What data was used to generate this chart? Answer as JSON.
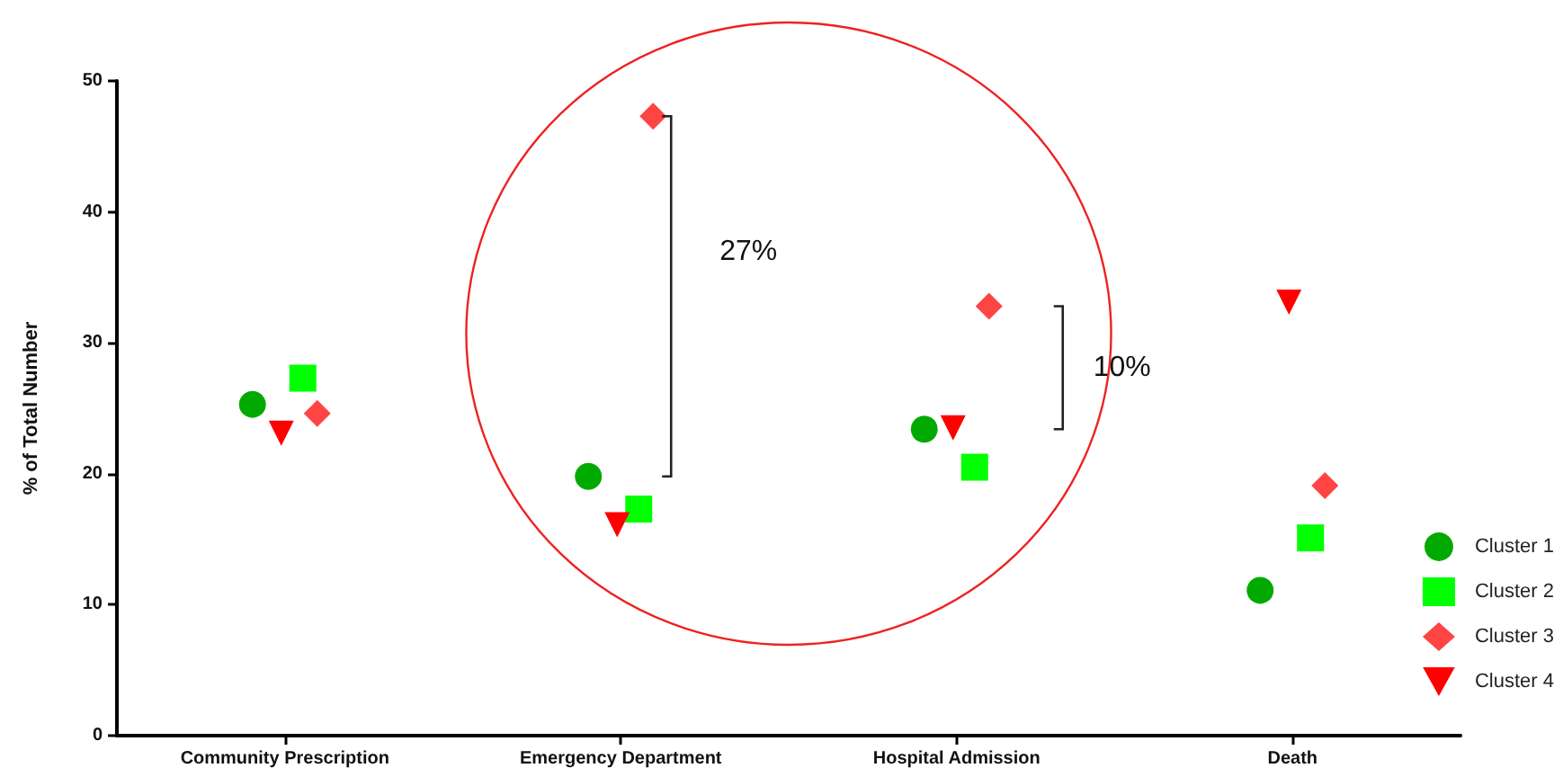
{
  "chart_data": {
    "type": "scatter",
    "ylabel": "% of Total Number",
    "categories": [
      "Community Prescription",
      "Emergency Department",
      "Hospital Admission",
      "Death"
    ],
    "series": [
      {
        "name": "Cluster 1",
        "color": "#00aa00",
        "marker": "circle",
        "values": [
          25.3,
          19.8,
          23.4,
          11.1
        ]
      },
      {
        "name": "Cluster 2",
        "color": "#00ff00",
        "marker": "square",
        "values": [
          27.3,
          17.3,
          20.5,
          15.1
        ]
      },
      {
        "name": "Cluster 3",
        "color": "#ff4444",
        "marker": "diamond",
        "values": [
          24.6,
          47.3,
          32.8,
          19.1
        ]
      },
      {
        "name": "Cluster 4",
        "color": "#ff0000",
        "marker": "triangle",
        "values": [
          23.1,
          16.1,
          23.5,
          33.1
        ]
      }
    ],
    "ylim": [
      0,
      50
    ],
    "yticks": [
      0,
      10,
      20,
      30,
      40,
      50
    ],
    "grid": false,
    "legend": "bottom right",
    "annotations": [
      "27%",
      "10%"
    ]
  }
}
